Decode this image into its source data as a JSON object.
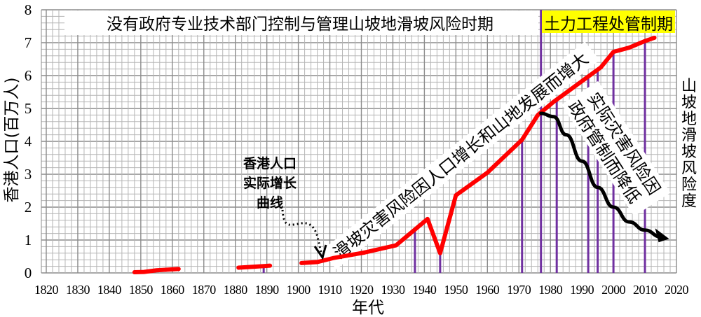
{
  "chart_data": {
    "type": "line",
    "xlabel": "年代",
    "ylabel": "香港人口(百万人)",
    "right_label": "山坡地滑坡风险度",
    "xlim": [
      1820,
      2020
    ],
    "ylim": [
      0,
      8
    ],
    "x_ticks": [
      1820,
      1830,
      1840,
      1850,
      1860,
      1870,
      1880,
      1890,
      1900,
      1910,
      1920,
      1930,
      1940,
      1950,
      1960,
      1970,
      1980,
      1990,
      2000,
      2010,
      2020
    ],
    "y_ticks": [
      0,
      1,
      2,
      3,
      4,
      5,
      6,
      7,
      8
    ],
    "grid": true,
    "colors": {
      "population": "#ff0000",
      "risk": "#000000",
      "events": "#7030a0",
      "highlight": "#ffff00",
      "grid": "#a6a6a6"
    },
    "series": [
      {
        "segments": [
          [
            [
              1848,
              0.02
            ],
            [
              1851,
              0.03
            ],
            [
              1855,
              0.08
            ],
            [
              1862,
              0.12
            ]
          ],
          [
            [
              1881,
              0.16
            ],
            [
              1886,
              0.19
            ],
            [
              1891,
              0.22
            ]
          ],
          [
            [
              1901,
              0.3
            ],
            [
              1906,
              0.33
            ],
            [
              1911,
              0.45
            ],
            [
              1921,
              0.62
            ],
            [
              1931,
              0.84
            ],
            [
              1941,
              1.64
            ],
            [
              1945,
              0.6
            ],
            [
              1950,
              2.36
            ],
            [
              1960,
              3.05
            ],
            [
              1971,
              4.05
            ],
            [
              1976,
              4.8
            ],
            [
              1981,
              5.2
            ],
            [
              1986,
              5.55
            ],
            [
              1991,
              5.9
            ],
            [
              1996,
              6.25
            ],
            [
              2000,
              6.72
            ],
            [
              2005,
              6.85
            ],
            [
              2010,
              7.05
            ],
            [
              2013,
              7.15
            ]
          ]
        ]
      }
    ],
    "risk_curve": [
      [
        1977,
        4.85
      ],
      [
        1981,
        4.75
      ],
      [
        1985,
        4.2
      ],
      [
        1990,
        3.4
      ],
      [
        1995,
        2.6
      ],
      [
        2000,
        2.0
      ],
      [
        2005,
        1.55
      ],
      [
        2010,
        1.3
      ],
      [
        2015,
        1.1
      ]
    ],
    "event_lines": [
      {
        "year": 1889,
        "top": 0.22
      },
      {
        "year": 1937,
        "top": 1.35
      },
      {
        "year": 1945,
        "top": 0.6
      },
      {
        "year": 1971,
        "top": 4.05
      },
      {
        "year": 1977,
        "top": 8
      },
      {
        "year": 1982,
        "top": 5.25
      },
      {
        "year": 1992,
        "top": 5.95
      },
      {
        "year": 1995,
        "top": 6.2
      },
      {
        "year": 2000,
        "top": 6.72
      },
      {
        "year": 2010,
        "top": 7.05
      }
    ],
    "annotations": {
      "period_before": "没有政府专业技术部门控制与管理山坡地滑坡风险时期",
      "period_after": "土力工程处管制期",
      "rising_risk": "滑坡灾害风险因人口增长和山地发展而增大",
      "falling_risk_line1": "实际灾害风险因",
      "falling_risk_line2": "政府管制而降低",
      "population_curve": [
        "香港人口",
        "实际增长",
        "曲线"
      ]
    }
  }
}
